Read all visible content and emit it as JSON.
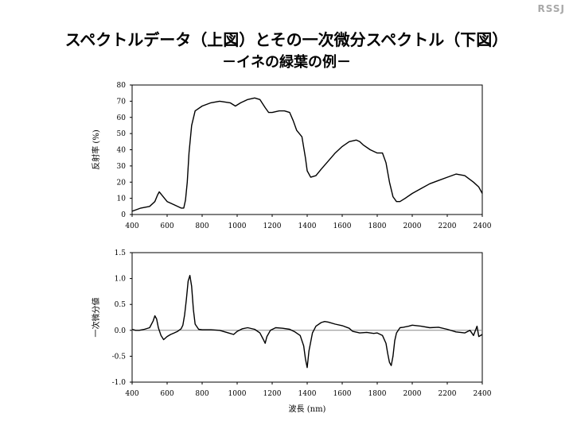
{
  "header": {
    "brand": "RSSJ",
    "title_line1": "スペクトルデータ（上図）とその一次微分スペクトル（下図）",
    "title_line2": "－イネの緑葉の例－"
  },
  "chart_data": [
    {
      "type": "line",
      "ylabel": "反射率 (%)",
      "xlim": [
        400,
        2400
      ],
      "ylim": [
        0,
        80
      ],
      "xticks": [
        400,
        600,
        800,
        1000,
        1200,
        1400,
        1600,
        1800,
        2000,
        2200,
        2400
      ],
      "yticks": [
        0,
        10,
        20,
        30,
        40,
        50,
        60,
        70,
        80
      ],
      "grid": false,
      "series": [
        {
          "x": [
            400,
            450,
            500,
            530,
            545,
            555,
            570,
            600,
            640,
            680,
            695,
            705,
            715,
            725,
            740,
            760,
            800,
            850,
            900,
            960,
            990,
            1020,
            1060,
            1100,
            1130,
            1160,
            1180,
            1200,
            1240,
            1270,
            1300,
            1320,
            1340,
            1370,
            1390,
            1400,
            1420,
            1450,
            1480,
            1520,
            1560,
            1600,
            1640,
            1680,
            1700,
            1720,
            1760,
            1800,
            1830,
            1850,
            1870,
            1890,
            1910,
            1930,
            1960,
            2000,
            2050,
            2100,
            2150,
            2200,
            2250,
            2300,
            2350,
            2380,
            2400
          ],
          "y": [
            2,
            4,
            5,
            8,
            12,
            14,
            12,
            8,
            6,
            4,
            4,
            9,
            20,
            38,
            55,
            64,
            67,
            69,
            70,
            69,
            67,
            69,
            71,
            72,
            71,
            66,
            63,
            63,
            64,
            64,
            63,
            58,
            52,
            48,
            35,
            27,
            23,
            24,
            28,
            33,
            38,
            42,
            45,
            46,
            45,
            43,
            40,
            38,
            38,
            32,
            20,
            11,
            8,
            8,
            10,
            13,
            16,
            19,
            21,
            23,
            25,
            24,
            20,
            17,
            13
          ]
        }
      ]
    },
    {
      "type": "line",
      "xlabel": "波長 (nm)",
      "ylabel": "一次微分値",
      "xlim": [
        400,
        2400
      ],
      "ylim": [
        -1.0,
        1.5
      ],
      "xticks": [
        400,
        600,
        800,
        1000,
        1200,
        1400,
        1600,
        1800,
        2000,
        2200,
        2400
      ],
      "yticks": [
        -1.0,
        -0.5,
        0.0,
        0.5,
        1.0,
        1.5
      ],
      "yticklabels": [
        "-1.0",
        "-0.5",
        "0.0",
        "0.5",
        "1.0",
        "1.5"
      ],
      "zero_line": true,
      "grid": false,
      "series": [
        {
          "x": [
            400,
            420,
            440,
            470,
            500,
            520,
            530,
            540,
            550,
            565,
            580,
            600,
            620,
            640,
            660,
            680,
            690,
            700,
            710,
            720,
            730,
            740,
            750,
            760,
            780,
            800,
            850,
            900,
            950,
            980,
            1000,
            1030,
            1060,
            1100,
            1130,
            1150,
            1160,
            1170,
            1190,
            1220,
            1260,
            1300,
            1330,
            1360,
            1380,
            1390,
            1400,
            1410,
            1430,
            1450,
            1480,
            1500,
            1520,
            1560,
            1600,
            1640,
            1660,
            1700,
            1740,
            1780,
            1800,
            1830,
            1850,
            1860,
            1870,
            1880,
            1890,
            1900,
            1910,
            1930,
            1950,
            1980,
            2000,
            2050,
            2100,
            2150,
            2200,
            2250,
            2300,
            2330,
            2350,
            2370,
            2380,
            2400
          ],
          "y": [
            0.02,
            0.0,
            0.0,
            0.02,
            0.05,
            0.18,
            0.28,
            0.22,
            0.05,
            -0.1,
            -0.18,
            -0.12,
            -0.08,
            -0.05,
            -0.02,
            0.03,
            0.1,
            0.3,
            0.6,
            0.95,
            1.06,
            0.85,
            0.4,
            0.12,
            0.02,
            0.01,
            0.01,
            0.0,
            -0.05,
            -0.08,
            -0.02,
            0.03,
            0.05,
            0.02,
            -0.05,
            -0.18,
            -0.25,
            -0.12,
            0.0,
            0.05,
            0.04,
            0.02,
            -0.03,
            -0.1,
            -0.3,
            -0.55,
            -0.72,
            -0.4,
            -0.05,
            0.08,
            0.15,
            0.17,
            0.16,
            0.12,
            0.09,
            0.04,
            -0.02,
            -0.05,
            -0.04,
            -0.06,
            -0.05,
            -0.1,
            -0.25,
            -0.45,
            -0.62,
            -0.68,
            -0.5,
            -0.2,
            -0.05,
            0.05,
            0.06,
            0.08,
            0.1,
            0.08,
            0.05,
            0.06,
            0.02,
            -0.03,
            -0.05,
            0.0,
            -0.1,
            0.08,
            -0.12,
            -0.08
          ]
        }
      ]
    }
  ]
}
